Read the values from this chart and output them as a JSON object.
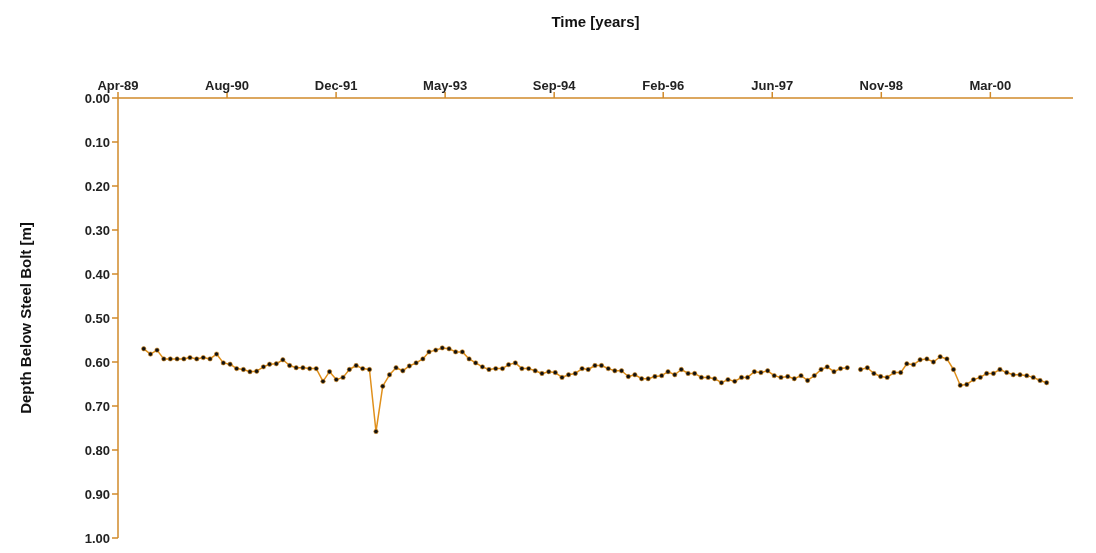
{
  "chart_data": {
    "type": "line",
    "xlabel": "Time [years]",
    "ylabel": "Depth Below Steel Bolt [m]",
    "x": [
      "1989-08",
      "1989-09",
      "1989-10",
      "1989-11",
      "1989-12",
      "1990-01",
      "1990-02",
      "1990-03",
      "1990-04",
      "1990-05",
      "1990-06",
      "1990-07",
      "1990-08",
      "1990-09",
      "1990-10",
      "1990-11",
      "1990-12",
      "1991-01",
      "1991-02",
      "1991-03",
      "1991-04",
      "1991-05",
      "1991-06",
      "1991-07",
      "1991-08",
      "1991-09",
      "1991-10",
      "1991-11",
      "1991-12",
      "1992-01",
      "1992-02",
      "1992-03",
      "1992-04",
      "1992-05",
      "1992-06",
      "1992-07",
      "1992-08",
      "1992-09",
      "1992-10",
      "1992-11",
      "1992-12",
      "1993-01",
      "1993-02",
      "1993-03",
      "1993-04",
      "1993-05",
      "1993-06",
      "1993-07",
      "1993-08",
      "1993-09",
      "1993-10",
      "1993-11",
      "1993-12",
      "1994-01",
      "1994-02",
      "1994-03",
      "1994-04",
      "1994-05",
      "1994-06",
      "1994-07",
      "1994-08",
      "1994-09",
      "1994-10",
      "1994-11",
      "1994-12",
      "1995-01",
      "1995-02",
      "1995-03",
      "1995-04",
      "1995-05",
      "1995-06",
      "1995-07",
      "1995-08",
      "1995-09",
      "1995-10",
      "1995-11",
      "1995-12",
      "1996-01",
      "1996-02",
      "1996-03",
      "1996-04",
      "1996-05",
      "1996-06",
      "1996-07",
      "1996-08",
      "1996-09",
      "1996-10",
      "1996-11",
      "1996-12",
      "1997-01",
      "1997-02",
      "1997-03",
      "1997-04",
      "1997-05",
      "1997-06",
      "1997-07",
      "1997-08",
      "1997-09",
      "1997-10",
      "1997-11",
      "1997-12",
      "1998-01",
      "1998-02",
      "1998-03",
      "1998-04",
      "1998-05",
      "1998-06",
      "1998-07",
      "1998-08",
      "1998-09",
      "1998-10",
      "1998-11",
      "1998-12",
      "1999-01",
      "1999-02",
      "1999-03",
      "1999-04",
      "1999-05",
      "1999-06",
      "1999-07",
      "1999-08",
      "1999-09",
      "1999-10",
      "1999-11",
      "1999-12",
      "2000-01",
      "2000-02",
      "2000-03",
      "2000-04",
      "2000-05",
      "2000-06",
      "2000-07",
      "2000-08",
      "2000-09",
      "2000-10",
      "2000-11",
      "2000-12"
    ],
    "series": [
      {
        "color": "#e0901c",
        "values": [
          0.57,
          0.582,
          0.573,
          0.593,
          0.593,
          0.593,
          0.593,
          0.59,
          0.593,
          0.59,
          0.593,
          0.582,
          0.602,
          0.605,
          0.615,
          0.617,
          0.622,
          0.621,
          0.611,
          0.605,
          0.604,
          0.595,
          0.608,
          0.613,
          0.613,
          0.615,
          0.615,
          0.644,
          0.622,
          0.64,
          0.635,
          0.617,
          0.608,
          0.615,
          0.617,
          0.758,
          0.655,
          0.629,
          0.613,
          0.62,
          0.609,
          0.602,
          0.593,
          0.577,
          0.573,
          0.568,
          0.57,
          0.577,
          0.577,
          0.593,
          0.602,
          0.611,
          0.617,
          0.615,
          0.615,
          0.606,
          0.602,
          0.615,
          0.615,
          0.62,
          0.626,
          0.622,
          0.624,
          0.635,
          0.629,
          0.626,
          0.615,
          0.617,
          0.608,
          0.608,
          0.615,
          0.62,
          0.62,
          0.633,
          0.629,
          0.638,
          0.638,
          0.633,
          0.631,
          0.622,
          0.629,
          0.617,
          0.626,
          0.626,
          0.635,
          0.635,
          0.638,
          0.647,
          0.64,
          0.644,
          0.635,
          0.635,
          0.622,
          0.624,
          0.62,
          0.631,
          0.635,
          0.633,
          0.638,
          0.631,
          0.642,
          0.631,
          0.617,
          0.611,
          0.622,
          0.615,
          0.613,
          null,
          0.617,
          0.613,
          0.626,
          0.633,
          0.635,
          0.624,
          0.624,
          0.604,
          0.606,
          0.595,
          0.593,
          0.6,
          0.588,
          0.593,
          0.617,
          0.653,
          0.651,
          0.64,
          0.635,
          0.626,
          0.626,
          0.617,
          0.624,
          0.629,
          0.629,
          0.631,
          0.635,
          0.642,
          0.647
        ]
      }
    ],
    "xlim": [
      "1989-04-05",
      "2001-04"
    ],
    "xticks": [
      {
        "value": "1989-04-05",
        "label": "Apr-89"
      },
      {
        "value": "1990-08-18",
        "label": "Aug-90"
      },
      {
        "value": "1991-12-31",
        "label": "Dec-91"
      },
      {
        "value": "1993-05-14",
        "label": "May-93"
      },
      {
        "value": "1994-09-26",
        "label": "Sep-94"
      },
      {
        "value": "1996-02-08",
        "label": "Feb-96"
      },
      {
        "value": "1997-06-22",
        "label": "Jun-97"
      },
      {
        "value": "1998-11-04",
        "label": "Nov-98"
      },
      {
        "value": "2000-03-18",
        "label": "Mar-00"
      }
    ],
    "ylim": [
      1.0,
      0.0
    ],
    "yticks": [
      {
        "value": 0,
        "label": "0.00"
      },
      {
        "value": 0.1,
        "label": "0.10"
      },
      {
        "value": 0.2,
        "label": "0.20"
      },
      {
        "value": 0.3,
        "label": "0.30"
      },
      {
        "value": 0.4,
        "label": "0.40"
      },
      {
        "value": 0.5,
        "label": "0.50"
      },
      {
        "value": 0.6,
        "label": "0.60"
      },
      {
        "value": 0.7,
        "label": "0.70"
      },
      {
        "value": 0.8,
        "label": "0.80"
      },
      {
        "value": 0.9,
        "label": "0.90"
      },
      {
        "value": 1.0,
        "label": "1.00"
      }
    ],
    "grid": false,
    "legend": false,
    "marker": "circle",
    "line_style": "solid"
  }
}
